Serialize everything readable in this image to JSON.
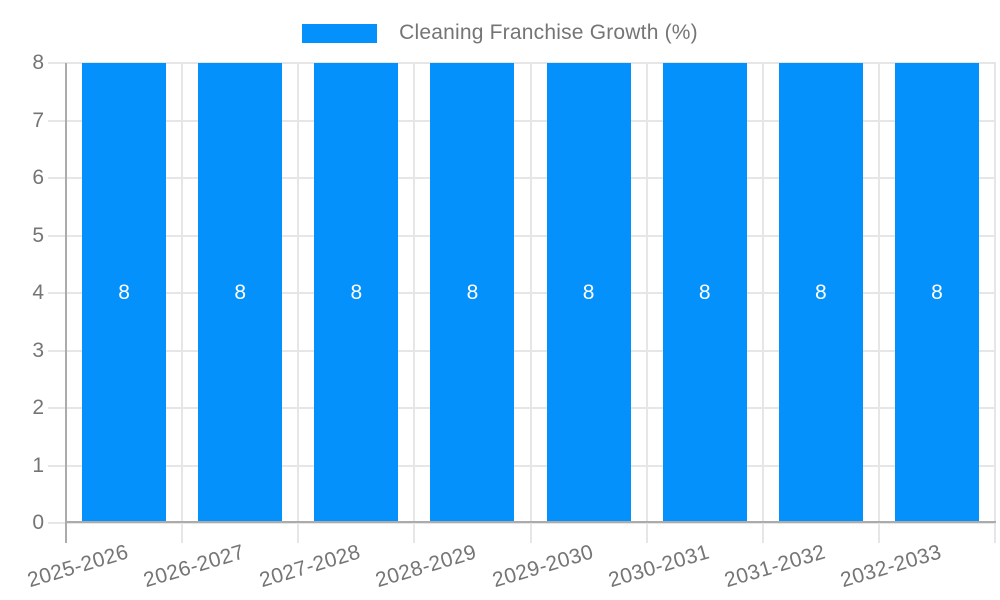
{
  "chart_data": {
    "type": "bar",
    "title": "Cleaning Franchise Growth (%)",
    "categories": [
      "2025-2026",
      "2026-2027",
      "2027-2028",
      "2028-2029",
      "2029-2030",
      "2030-2031",
      "2031-2032",
      "2032-2033"
    ],
    "values": [
      8,
      8,
      8,
      8,
      8,
      8,
      8,
      8
    ],
    "bar_labels": [
      "8",
      "8",
      "8",
      "8",
      "8",
      "8",
      "8",
      "8"
    ],
    "series": [
      {
        "name": "Cleaning Franchise Growth (%)",
        "values": [
          8,
          8,
          8,
          8,
          8,
          8,
          8,
          8
        ]
      }
    ],
    "xlabel": "",
    "ylabel": "",
    "ylim": [
      0,
      8
    ],
    "yticks": [
      0,
      1,
      2,
      3,
      4,
      5,
      6,
      7,
      8
    ],
    "grid": "horizontal-and-vertical",
    "legend_position": "top-center",
    "colors": {
      "bar": "#0591FB",
      "bar_label": "#FFFFFF",
      "gridline": "#E6E6E6",
      "axis_line": "#ABABAB",
      "tick_label": "#757575",
      "legend_text": "#757575",
      "background": "#FFFFFF"
    }
  }
}
